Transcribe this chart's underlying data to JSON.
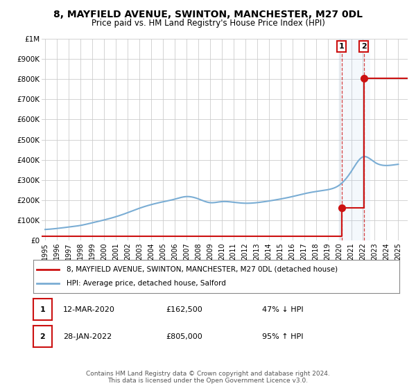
{
  "title": "8, MAYFIELD AVENUE, SWINTON, MANCHESTER, M27 0DL",
  "subtitle": "Price paid vs. HM Land Registry's House Price Index (HPI)",
  "title_fontsize": 10,
  "subtitle_fontsize": 8.5,
  "ylim": [
    0,
    1000000
  ],
  "xlim_start": 1994.7,
  "xlim_end": 2025.8,
  "hpi_color": "#7aadd4",
  "price_color": "#cc1111",
  "transaction1_x": 2020.19,
  "transaction1_y": 162500,
  "transaction1_label": "1",
  "transaction1_date": "12-MAR-2020",
  "transaction1_price": "£162,500",
  "transaction1_hpi": "47% ↓ HPI",
  "transaction2_x": 2022.07,
  "transaction2_y": 805000,
  "transaction2_label": "2",
  "transaction2_date": "28-JAN-2022",
  "transaction2_price": "£805,000",
  "transaction2_hpi": "95% ↑ HPI",
  "legend_line1": "8, MAYFIELD AVENUE, SWINTON, MANCHESTER, M27 0DL (detached house)",
  "legend_line2": "HPI: Average price, detached house, Salford",
  "footer": "Contains HM Land Registry data © Crown copyright and database right 2024.\nThis data is licensed under the Open Government Licence v3.0.",
  "shaded_region_start": 2019.9,
  "shaded_region_end": 2022.6,
  "background_color": "#ffffff",
  "grid_color": "#cccccc",
  "yticks": [
    0,
    100000,
    200000,
    300000,
    400000,
    500000,
    600000,
    700000,
    800000,
    900000,
    1000000
  ],
  "ytick_labels": [
    "£0",
    "£100K",
    "£200K",
    "£300K",
    "£400K",
    "£500K",
    "£600K",
    "£700K",
    "£800K",
    "£900K",
    "£1M"
  ],
  "xticks": [
    1995,
    1996,
    1997,
    1998,
    1999,
    2000,
    2001,
    2002,
    2003,
    2004,
    2005,
    2006,
    2007,
    2008,
    2009,
    2010,
    2011,
    2012,
    2013,
    2014,
    2015,
    2016,
    2017,
    2018,
    2019,
    2020,
    2021,
    2022,
    2023,
    2024,
    2025
  ],
  "years_hpi": [
    1995,
    1996,
    1997,
    1998,
    1999,
    2000,
    2001,
    2002,
    2003,
    2004,
    2005,
    2006,
    2007,
    2008,
    2009,
    2010,
    2011,
    2012,
    2013,
    2014,
    2015,
    2016,
    2017,
    2018,
    2019,
    2020,
    2021,
    2022,
    2023,
    2024,
    2025
  ],
  "hpi_values": [
    55000,
    60000,
    67000,
    75000,
    88000,
    102000,
    118000,
    138000,
    160000,
    178000,
    192000,
    205000,
    218000,
    207000,
    188000,
    193000,
    190000,
    185000,
    188000,
    196000,
    206000,
    218000,
    232000,
    243000,
    252000,
    275000,
    342000,
    415000,
    388000,
    372000,
    378000
  ],
  "red_x": [
    1994.7,
    2020.19,
    2020.19,
    2022.07,
    2022.07,
    2025.8
  ],
  "red_y": [
    22000,
    22000,
    162500,
    162500,
    805000,
    805000
  ]
}
